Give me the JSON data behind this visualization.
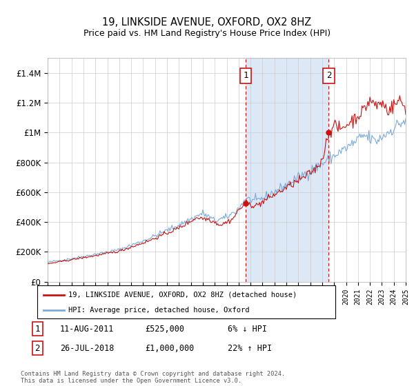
{
  "title": "19, LINKSIDE AVENUE, OXFORD, OX2 8HZ",
  "subtitle": "Price paid vs. HM Land Registry's House Price Index (HPI)",
  "ylim": [
    0,
    1500000
  ],
  "yticks": [
    0,
    200000,
    400000,
    600000,
    800000,
    1000000,
    1200000,
    1400000
  ],
  "ytick_labels": [
    "£0",
    "£200K",
    "£400K",
    "£600K",
    "£800K",
    "£1M",
    "£1.2M",
    "£1.4M"
  ],
  "background_color": "#ffffff",
  "grid_color": "#cccccc",
  "hpi_color": "#7aabdc",
  "price_color": "#cc1111",
  "highlight_bg": "#dce8f5",
  "sale1_x": 2011.58,
  "sale1_y": 525000,
  "sale1_label": "1",
  "sale1_date": "11-AUG-2011",
  "sale1_price": "£525,000",
  "sale1_hpi": "6% ↓ HPI",
  "sale2_x": 2018.55,
  "sale2_y": 1000000,
  "sale2_label": "2",
  "sale2_date": "26-JUL-2018",
  "sale2_price": "£1,000,000",
  "sale2_hpi": "22% ↑ HPI",
  "legend_line1": "19, LINKSIDE AVENUE, OXFORD, OX2 8HZ (detached house)",
  "legend_line2": "HPI: Average price, detached house, Oxford",
  "footnote": "Contains HM Land Registry data © Crown copyright and database right 2024.\nThis data is licensed under the Open Government Licence v3.0.",
  "xmin": 1995,
  "xmax": 2025
}
